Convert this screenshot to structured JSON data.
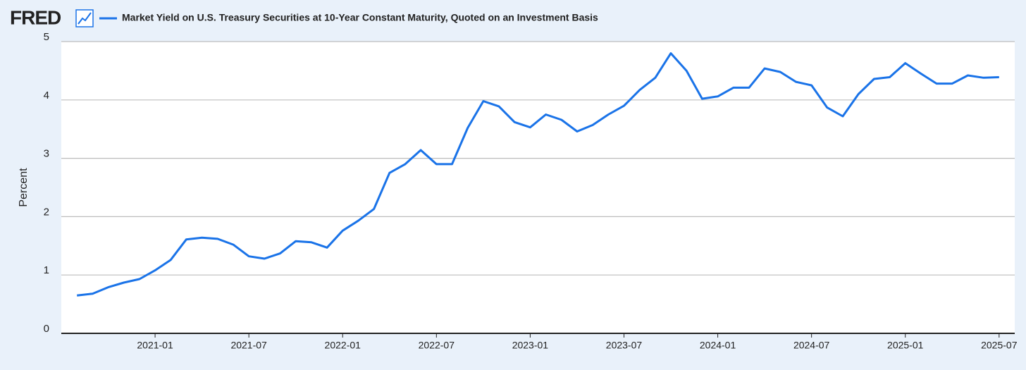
{
  "brand": "FRED",
  "chart_data": {
    "type": "line",
    "y_label": "Percent",
    "x": [
      "2020-08",
      "2020-09",
      "2020-10",
      "2020-11",
      "2020-12",
      "2021-01",
      "2021-02",
      "2021-03",
      "2021-04",
      "2021-05",
      "2021-06",
      "2021-07",
      "2021-08",
      "2021-09",
      "2021-10",
      "2021-11",
      "2021-12",
      "2022-01",
      "2022-02",
      "2022-03",
      "2022-04",
      "2022-05",
      "2022-06",
      "2022-07",
      "2022-08",
      "2022-09",
      "2022-10",
      "2022-11",
      "2022-12",
      "2023-01",
      "2023-02",
      "2023-03",
      "2023-04",
      "2023-05",
      "2023-06",
      "2023-07",
      "2023-08",
      "2023-09",
      "2023-10",
      "2023-11",
      "2023-12",
      "2024-01",
      "2024-02",
      "2024-03",
      "2024-04",
      "2024-05",
      "2024-06",
      "2024-07",
      "2024-08",
      "2024-09",
      "2024-10",
      "2024-11",
      "2024-12",
      "2025-01",
      "2025-02",
      "2025-03",
      "2025-04",
      "2025-05",
      "2025-06",
      "2025-07"
    ],
    "series": [
      {
        "name": "Market Yield on U.S. Treasury Securities at 10-Year Constant Maturity, Quoted on an Investment Basis",
        "color": "#1a73e8",
        "values": [
          0.65,
          0.68,
          0.79,
          0.87,
          0.93,
          1.08,
          1.26,
          1.61,
          1.64,
          1.62,
          1.52,
          1.32,
          1.28,
          1.37,
          1.58,
          1.56,
          1.47,
          1.76,
          1.93,
          2.13,
          2.75,
          2.9,
          3.14,
          2.9,
          2.9,
          3.52,
          3.98,
          3.89,
          3.62,
          3.53,
          3.75,
          3.66,
          3.46,
          3.57,
          3.75,
          3.9,
          4.17,
          4.38,
          4.8,
          4.5,
          4.02,
          4.06,
          4.21,
          4.21,
          4.54,
          4.48,
          4.31,
          4.25,
          3.87,
          3.72,
          4.1,
          4.36,
          4.39,
          4.63,
          4.45,
          4.28,
          4.28,
          4.42,
          4.38,
          4.39
        ]
      }
    ],
    "xlim": [
      "2020-07",
      "2025-08"
    ],
    "xticks": [
      "2021-01",
      "2021-07",
      "2022-01",
      "2022-07",
      "2023-01",
      "2023-07",
      "2024-01",
      "2024-07",
      "2025-01",
      "2025-07"
    ],
    "ylim": [
      0,
      5
    ],
    "yticks": [
      0,
      1,
      2,
      3,
      4,
      5
    ],
    "grid": true
  }
}
